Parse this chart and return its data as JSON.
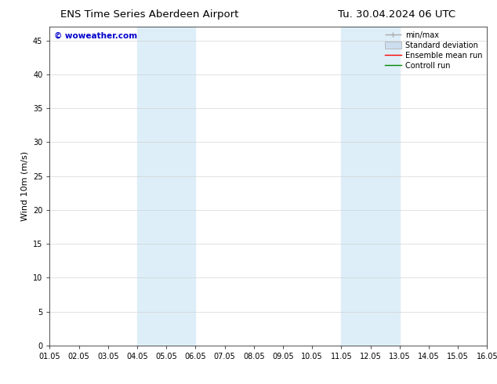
{
  "title_left": "ENS Time Series Aberdeen Airport",
  "title_right": "Tu. 30.04.2024 06 UTC",
  "ylabel": "Wind 10m (m/s)",
  "watermark": "© woweather.com",
  "watermark_color": "#0000cc",
  "xlim_start": 0,
  "xlim_end": 15,
  "ylim_min": 0,
  "ylim_max": 47,
  "yticks": [
    0,
    5,
    10,
    15,
    20,
    25,
    30,
    35,
    40,
    45
  ],
  "xtick_labels": [
    "01.05",
    "02.05",
    "03.05",
    "04.05",
    "05.05",
    "06.05",
    "07.05",
    "08.05",
    "09.05",
    "10.05",
    "11.05",
    "12.05",
    "13.05",
    "14.05",
    "15.05",
    "16.05"
  ],
  "shaded_regions": [
    {
      "x_start": 3.0,
      "x_end": 4.0,
      "color": "#ddeef8"
    },
    {
      "x_start": 4.0,
      "x_end": 5.0,
      "color": "#ddeef8"
    },
    {
      "x_start": 10.0,
      "x_end": 11.0,
      "color": "#ddeef8"
    },
    {
      "x_start": 11.0,
      "x_end": 12.0,
      "color": "#ddeef8"
    }
  ],
  "legend_items": [
    {
      "label": "min/max",
      "color": "#aaaaaa",
      "lw": 1.0
    },
    {
      "label": "Standard deviation",
      "color": "#ccddee",
      "lw": 6
    },
    {
      "label": "Ensemble mean run",
      "color": "#ff0000",
      "lw": 1.0
    },
    {
      "label": "Controll run",
      "color": "#008800",
      "lw": 1.0
    }
  ],
  "background_color": "#ffffff",
  "grid_color": "#cccccc",
  "title_fontsize": 9.5,
  "ylabel_fontsize": 8,
  "tick_fontsize": 7,
  "legend_fontsize": 7,
  "watermark_fontsize": 7.5
}
